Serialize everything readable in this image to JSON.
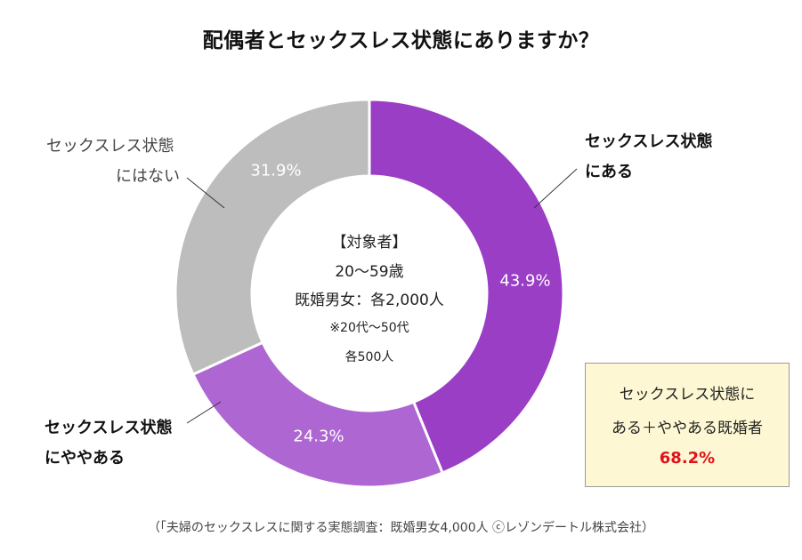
{
  "chart_data": {
    "type": "pie",
    "title": "配偶者とセックスレス状態にありますか？",
    "categories": [
      [
        "セックスレス状態",
        "にある"
      ],
      [
        "セックスレス状態",
        "にややある"
      ],
      [
        "セックスレス状態",
        "にはない"
      ]
    ],
    "values": [
      43.9,
      24.3,
      31.9
    ],
    "value_labels": [
      "43.9%",
      "24.3%",
      "31.9%"
    ],
    "colors": [
      "#9a3ec6",
      "#ad66d2",
      "#bdbdbd"
    ],
    "start": "top, clockwise",
    "donut": true,
    "legend": "none"
  },
  "center_text": {
    "line1": "【対象者】",
    "line2": "20～59歳",
    "line3": "既婚男女：各2,000人",
    "line4": "※20代～50代",
    "line5": "各500人"
  },
  "callout": {
    "line1": "セックスレス状態に",
    "line2": "ある＋ややある既婚者",
    "value": "68.2%"
  },
  "source": "（「夫婦のセックスレスに関する実態調査：既婚男女4,000人 ⓒレゾンデートル株式会社）"
}
